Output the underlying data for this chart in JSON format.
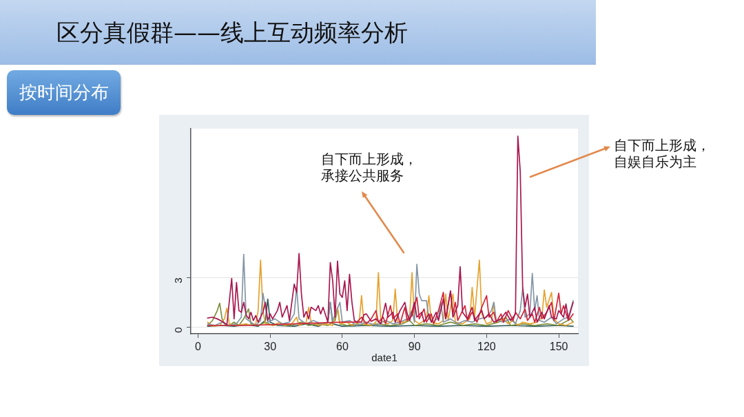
{
  "chart_data": {
    "type": "line",
    "title": "区分真假群——线上互动频率分析",
    "subtitle": "按时间分布",
    "xlabel": "date1",
    "annotations": [
      "自下而上形成，承接公共服务",
      "自下而上形成，自娱自乐为主"
    ],
    "xlim": [
      -3,
      158
    ],
    "ylim": [
      -0.4,
      12
    ],
    "xticks": [
      0,
      30,
      60,
      90,
      120,
      150
    ],
    "yticks": [
      0,
      3
    ],
    "grid": "y",
    "series": [
      {
        "color": "#a8174e",
        "x": [
          4,
          6,
          8,
          10,
          12,
          14,
          15,
          16,
          17,
          18,
          19,
          20,
          21,
          22,
          23,
          24,
          25,
          26,
          27,
          28,
          29,
          30,
          31,
          33,
          34,
          35,
          37,
          38,
          40,
          41,
          42,
          43,
          44,
          45,
          46,
          47,
          49,
          50,
          51,
          52,
          54,
          55,
          56,
          57,
          58,
          59,
          60,
          61,
          62,
          63,
          64,
          65,
          66,
          68,
          69,
          70,
          72,
          74,
          76,
          78,
          79,
          81,
          82,
          84,
          86,
          87,
          88,
          90,
          91,
          93,
          94,
          96,
          97,
          99,
          100,
          102,
          103,
          105,
          106,
          108,
          109,
          110,
          112,
          114,
          115,
          118,
          119,
          121,
          123,
          126,
          128,
          130,
          132,
          133,
          134,
          135,
          136,
          137,
          138,
          140,
          141,
          143,
          144,
          146,
          147,
          149,
          150,
          152,
          153,
          154,
          156
        ],
        "values": [
          0.55,
          0.6,
          0.5,
          0.35,
          0.15,
          2.95,
          0.5,
          2.7,
          1.0,
          0.9,
          1.5,
          0.75,
          0.5,
          0.9,
          0.4,
          0.7,
          0.3,
          0.6,
          0.9,
          1.5,
          0.4,
          0.8,
          0.5,
          1.0,
          1.5,
          0.6,
          1.3,
          0.4,
          2.6,
          2.1,
          4.45,
          2.0,
          0.6,
          0.95,
          0.5,
          1.2,
          1.0,
          1.3,
          0.8,
          1.2,
          0.3,
          3.9,
          2.8,
          0.6,
          4.0,
          2.0,
          1.8,
          2.8,
          1.0,
          3.2,
          1.5,
          0.4,
          0.3,
          0.3,
          0.75,
          0.8,
          0.35,
          0.5,
          0.2,
          1.45,
          0.6,
          0.9,
          0.3,
          1.0,
          1.5,
          0.8,
          0.4,
          1.5,
          0.6,
          0.9,
          0.3,
          0.8,
          0.3,
          0.9,
          0.4,
          1.7,
          0.5,
          2.2,
          0.6,
          1.3,
          3.65,
          0.9,
          0.5,
          1.2,
          0.4,
          1.0,
          0.5,
          0.8,
          0.3,
          0.5,
          0.9,
          0.4,
          0.8,
          11.55,
          9.4,
          2.4,
          1.2,
          2.0,
          0.6,
          1.2,
          0.3,
          0.9,
          0.5,
          1.3,
          0.6,
          0.5,
          1.0,
          0.6,
          1.4,
          0.5,
          1.5
        ]
      },
      {
        "color": "#d0263a",
        "x": [
          4,
          20,
          40,
          60,
          66,
          68,
          70,
          72,
          74,
          75,
          77,
          78,
          80,
          81,
          83,
          84,
          86,
          87,
          89,
          91,
          92,
          94,
          95,
          97,
          98,
          100,
          102,
          103,
          105,
          106,
          107,
          108,
          111,
          112,
          114,
          116,
          118,
          120,
          121,
          123,
          124,
          126,
          127,
          129,
          131,
          132,
          134,
          136,
          137,
          139,
          140,
          142,
          143,
          145,
          147,
          148,
          150,
          151,
          152,
          154,
          156
        ],
        "values": [
          0.1,
          0.1,
          0.2,
          0.3,
          0.3,
          0.6,
          0.2,
          0.5,
          1.0,
          0.3,
          0.6,
          0.2,
          1.3,
          0.5,
          0.8,
          0.2,
          1.2,
          0.4,
          0.7,
          1.8,
          0.5,
          1.1,
          0.3,
          0.8,
          0.2,
          1.0,
          2.1,
          0.5,
          2.15,
          0.8,
          1.5,
          0.4,
          1.3,
          0.4,
          0.9,
          0.3,
          1.2,
          1.9,
          0.6,
          0.9,
          0.3,
          0.8,
          0.3,
          1.0,
          0.4,
          0.9,
          0.5,
          1.1,
          0.4,
          0.8,
          0.3,
          1.2,
          0.5,
          0.9,
          1.5,
          0.4,
          2.05,
          0.8,
          1.3,
          0.4,
          0.8
        ]
      },
      {
        "color": "#8495a6",
        "x": [
          4,
          7,
          10,
          13,
          16,
          18,
          19,
          20,
          22,
          24,
          26,
          27,
          28,
          29,
          32,
          35,
          38,
          40,
          41,
          42,
          45,
          48,
          51,
          54,
          55,
          56,
          59,
          60,
          63,
          66,
          70,
          74,
          78,
          81,
          84,
          87,
          89,
          90,
          91,
          92,
          93,
          95,
          96,
          98,
          100,
          101,
          102,
          105,
          108,
          111,
          114,
          117,
          120,
          122,
          123,
          124,
          127,
          130,
          132,
          134,
          135,
          136,
          138,
          139,
          140,
          141,
          142,
          144,
          147,
          149,
          152,
          154,
          156
        ],
        "values": [
          0.2,
          0.1,
          0.3,
          0.1,
          0.2,
          0.6,
          4.4,
          0.5,
          0.3,
          0.1,
          0.4,
          2.05,
          1.2,
          0.3,
          0.5,
          0.2,
          0.3,
          0.8,
          2.4,
          0.5,
          0.2,
          0.4,
          0.2,
          0.3,
          1.5,
          0.4,
          1.5,
          0.3,
          0.4,
          0.1,
          0.3,
          0.1,
          0.4,
          0.2,
          0.3,
          0.5,
          1.0,
          0.3,
          3.8,
          2.0,
          1.6,
          1.6,
          0.5,
          0.3,
          0.6,
          1.5,
          0.3,
          0.5,
          0.2,
          0.4,
          0.3,
          0.5,
          0.6,
          1.0,
          1.5,
          0.4,
          0.3,
          0.5,
          0.2,
          1.0,
          2.35,
          0.6,
          0.8,
          3.25,
          1.0,
          1.9,
          0.4,
          0.3,
          0.6,
          0.2,
          0.5,
          0.6,
          1.6
        ]
      },
      {
        "color": "#e5a22f",
        "x": [
          4,
          6,
          9,
          11,
          12,
          13,
          16,
          20,
          22,
          24,
          25,
          26,
          27,
          28,
          31,
          34,
          36,
          39,
          41,
          42,
          45,
          46,
          47,
          50,
          53,
          56,
          58,
          59,
          62,
          64,
          67,
          68,
          69,
          72,
          74,
          75,
          76,
          79,
          81,
          82,
          83,
          86,
          88,
          89,
          90,
          92,
          95,
          96,
          97,
          100,
          102,
          103,
          104,
          106,
          107,
          110,
          113,
          114,
          115,
          117,
          118,
          120,
          122,
          123,
          124,
          127,
          129,
          131,
          133,
          135,
          138,
          141,
          143,
          144,
          145,
          147,
          148,
          150,
          153,
          156
        ],
        "values": [
          0.3,
          0.05,
          0.1,
          0.5,
          1.15,
          0.2,
          0.1,
          0.2,
          0.1,
          0.2,
          1.0,
          4.05,
          1.0,
          0.2,
          0.1,
          0.3,
          0.1,
          0.2,
          0.6,
          0.1,
          0.3,
          1.2,
          0.3,
          0.1,
          0.2,
          0.1,
          1.2,
          0.2,
          0.3,
          0.1,
          0.3,
          1.9,
          0.2,
          0.1,
          0.3,
          3.3,
          0.4,
          0.2,
          0.4,
          2.3,
          0.3,
          0.3,
          0.6,
          3.3,
          0.4,
          0.2,
          0.5,
          1.9,
          0.3,
          0.2,
          0.4,
          2.0,
          0.4,
          2.0,
          0.3,
          0.2,
          0.5,
          2.4,
          0.6,
          4.05,
          0.8,
          0.2,
          0.3,
          1.5,
          0.3,
          0.5,
          0.2,
          0.4,
          0.1,
          0.3,
          0.2,
          0.3,
          0.6,
          2.25,
          1.2,
          2.1,
          0.5,
          0.2,
          0.1,
          0.3
        ]
      },
      {
        "color": "#7d8f3a",
        "x": [
          4,
          6,
          8,
          9,
          10,
          11,
          13,
          15,
          17,
          19,
          21,
          22,
          25,
          28,
          31,
          35,
          39,
          43,
          46,
          50,
          54,
          57,
          58,
          59,
          62,
          66,
          70,
          75,
          80,
          85,
          88,
          90,
          95,
          100,
          105,
          110,
          115,
          120,
          125,
          128,
          130,
          135,
          140,
          145,
          150,
          155,
          156
        ],
        "values": [
          0.1,
          0.4,
          1.0,
          1.45,
          0.5,
          0.2,
          0.1,
          0.3,
          0.1,
          0.5,
          1.1,
          0.2,
          0.1,
          0.3,
          0.1,
          0.2,
          0.1,
          0.3,
          0.1,
          0.2,
          0.1,
          0.4,
          1.1,
          0.2,
          0.1,
          0.2,
          0.1,
          0.2,
          0.1,
          0.2,
          0.4,
          0.1,
          0.2,
          0.1,
          0.3,
          0.1,
          0.2,
          0.1,
          0.3,
          0.6,
          0.1,
          0.2,
          0.1,
          0.2,
          0.1,
          0.5,
          0.3
        ]
      },
      {
        "color": "#2f5d5a",
        "x": [
          4,
          10,
          15,
          20,
          25,
          28,
          29,
          30,
          33,
          40,
          45,
          50,
          54,
          55,
          56,
          60,
          70,
          80,
          90,
          100,
          110,
          120,
          130,
          140,
          150,
          156
        ],
        "values": [
          0.05,
          0.1,
          0.05,
          0.15,
          0.05,
          0.4,
          1.7,
          0.3,
          0.1,
          0.05,
          0.2,
          0.05,
          0.3,
          1.5,
          0.2,
          0.05,
          0.1,
          0.05,
          0.1,
          0.05,
          0.1,
          0.05,
          0.1,
          0.05,
          0.1,
          0.05
        ]
      }
    ]
  }
}
